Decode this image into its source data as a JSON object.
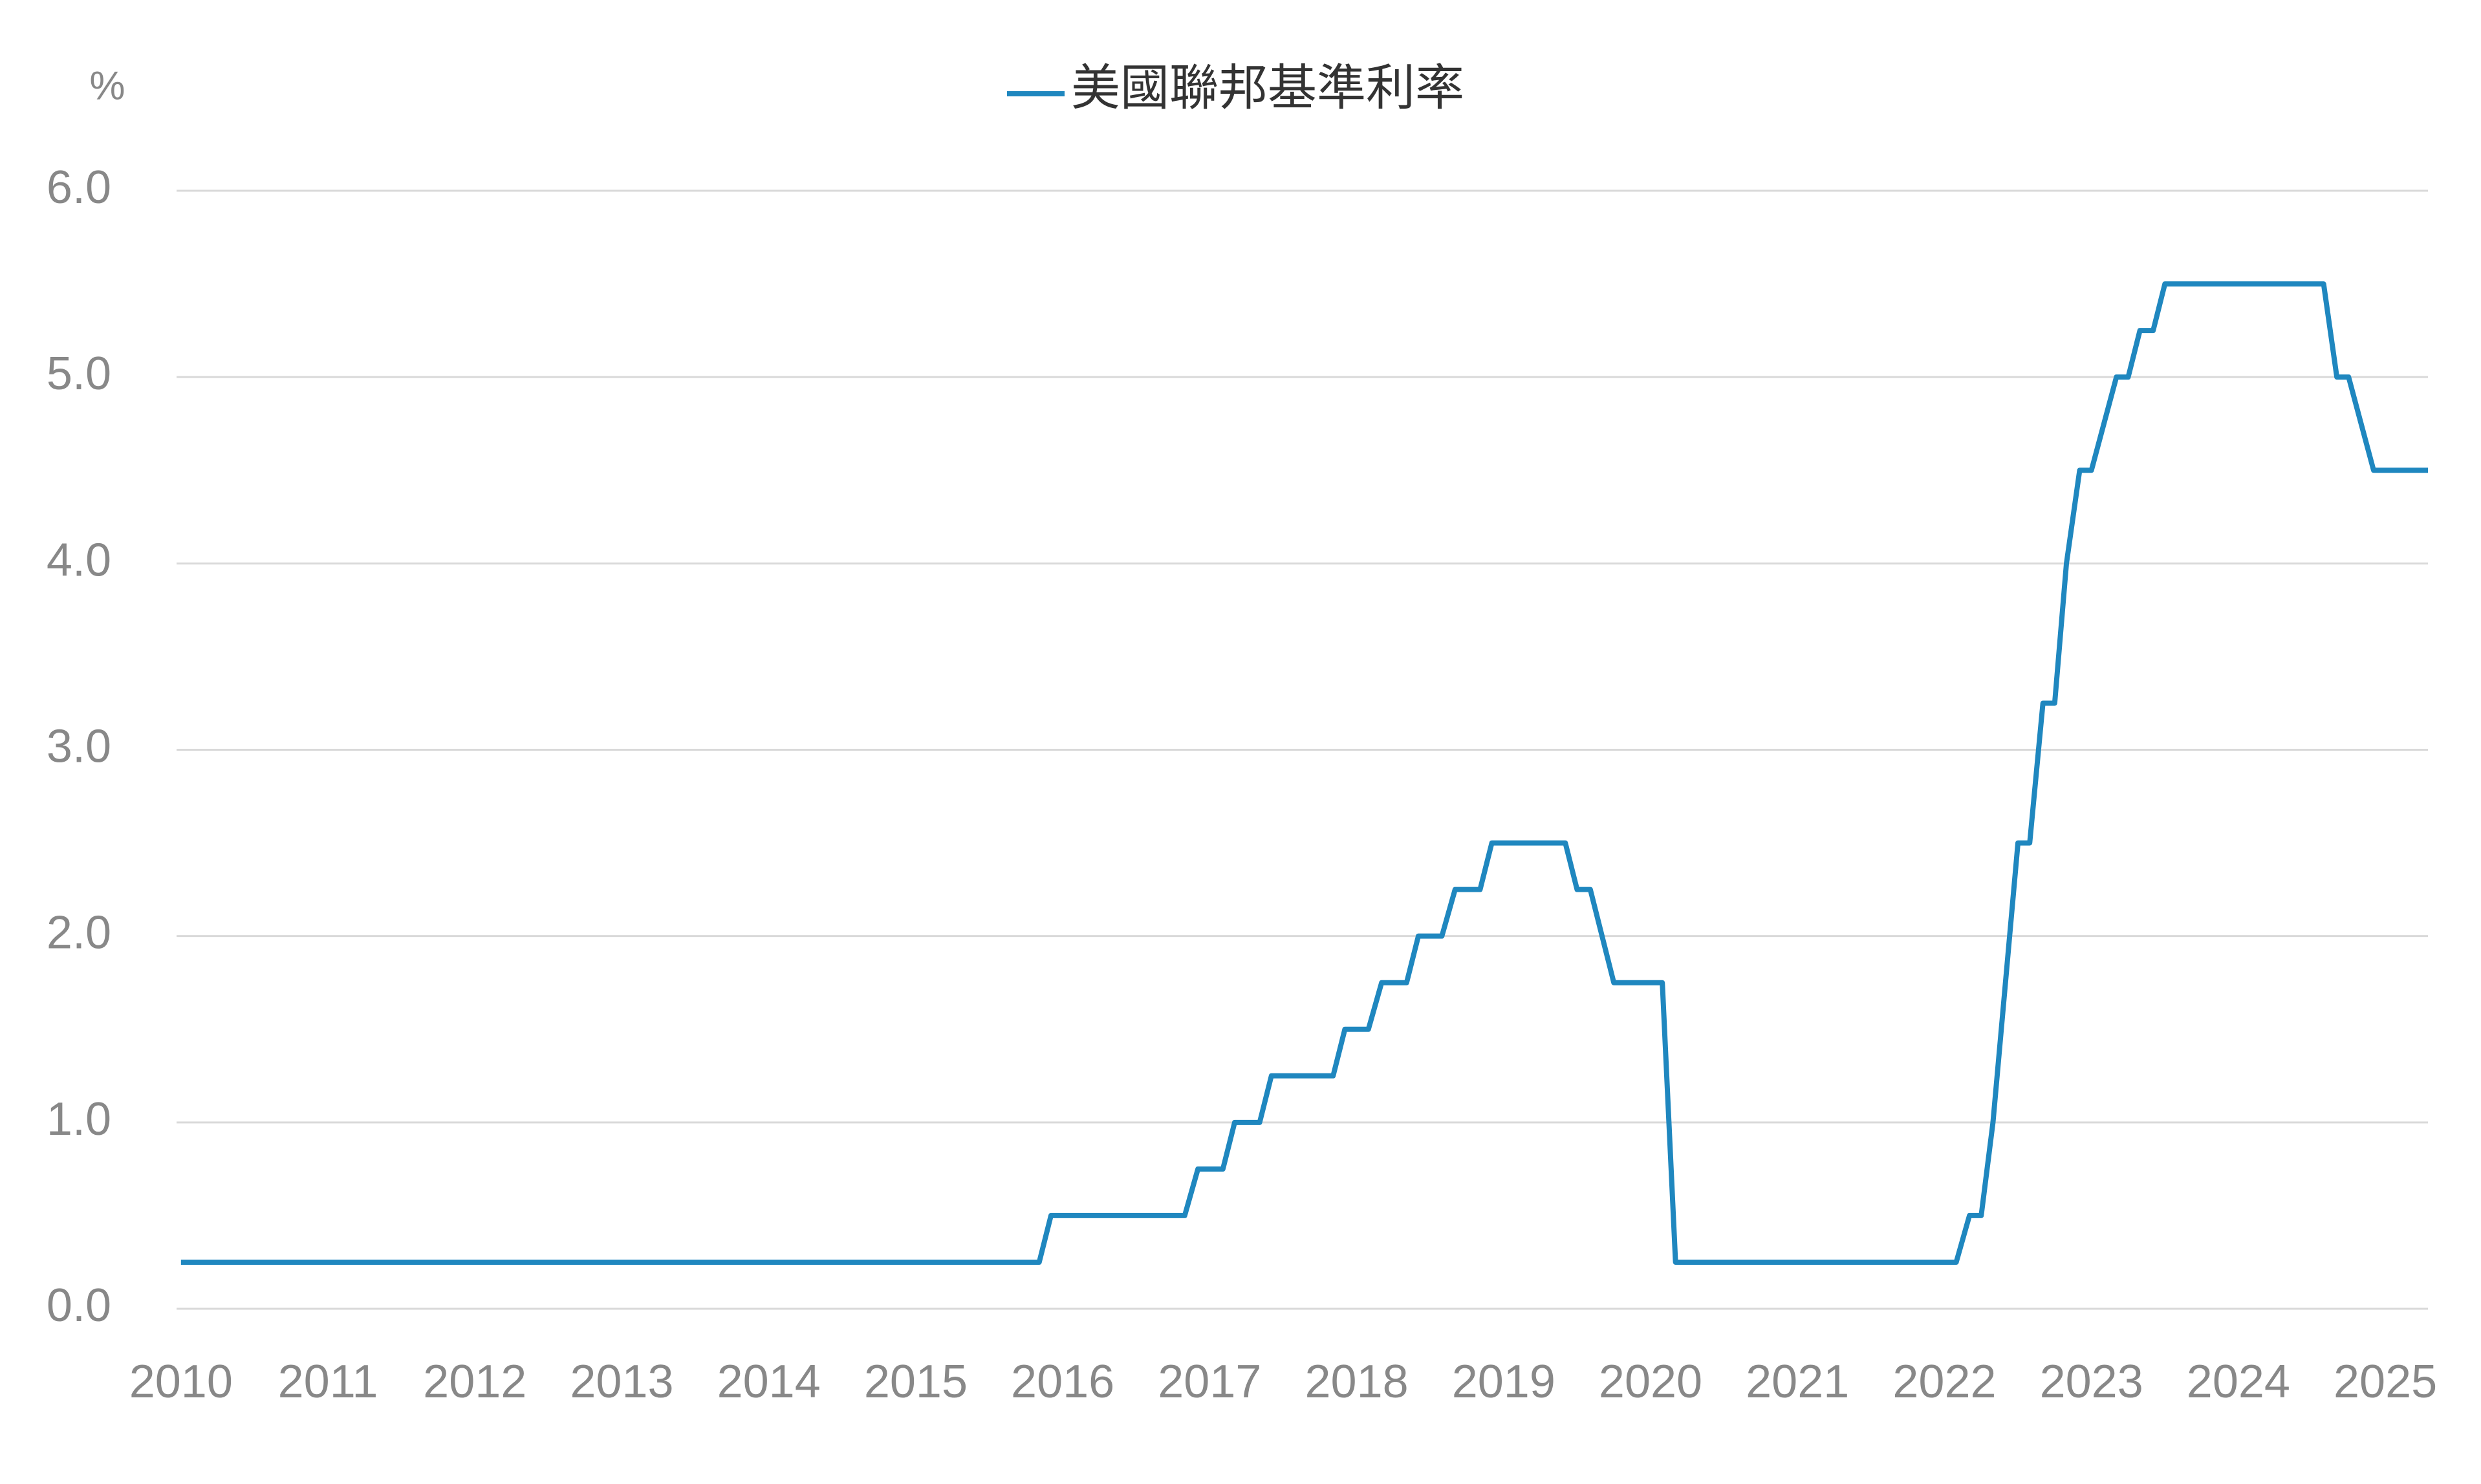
{
  "chart_data": {
    "type": "line",
    "y_label": "%",
    "x": [
      2010,
      2015.84,
      2015.92,
      2016.83,
      2016.92,
      2017.09,
      2017.17,
      2017.34,
      2017.42,
      2017.84,
      2017.92,
      2018.08,
      2018.17,
      2018.34,
      2018.42,
      2018.58,
      2018.67,
      2018.84,
      2018.92,
      2019.42,
      2019.5,
      2019.59,
      2019.75,
      2020.08,
      2020.17,
      2022.08,
      2022.17,
      2022.25,
      2022.33,
      2022.5,
      2022.58,
      2022.67,
      2022.75,
      2022.83,
      2022.92,
      2023.0,
      2023.17,
      2023.25,
      2023.33,
      2023.42,
      2023.5,
      2024.58,
      2024.67,
      2024.75,
      2024.92,
      2025.29
    ],
    "series": [
      {
        "name": "美國聯邦基準利率",
        "color": "#1f87bf",
        "values": [
          0.25,
          0.25,
          0.5,
          0.5,
          0.75,
          0.75,
          1.0,
          1.0,
          1.25,
          1.25,
          1.5,
          1.5,
          1.75,
          1.75,
          2.0,
          2.0,
          2.25,
          2.25,
          2.5,
          2.5,
          2.25,
          2.25,
          1.75,
          1.75,
          0.25,
          0.25,
          0.5,
          0.5,
          1.0,
          2.5,
          2.5,
          3.25,
          3.25,
          4.0,
          4.5,
          4.5,
          5.0,
          5.0,
          5.25,
          5.25,
          5.5,
          5.5,
          5.0,
          5.0,
          4.5,
          4.5
        ]
      }
    ],
    "xlim": [
      2009.97,
      2025.29
    ],
    "xticks": [
      2010,
      2011,
      2012,
      2013,
      2014,
      2015,
      2016,
      2017,
      2018,
      2019,
      2020,
      2021,
      2022,
      2023,
      2024,
      2025
    ],
    "ylim": [
      0,
      6
    ],
    "yticks": [
      {
        "value": 0,
        "label": "0.0"
      },
      {
        "value": 1,
        "label": "1.0"
      },
      {
        "value": 2,
        "label": "2.0"
      },
      {
        "value": 3,
        "label": "3.0"
      },
      {
        "value": 4,
        "label": "4.0"
      },
      {
        "value": 5,
        "label": "5.0"
      },
      {
        "value": 6,
        "label": "6.0"
      }
    ],
    "grid": true,
    "legend": "top"
  }
}
